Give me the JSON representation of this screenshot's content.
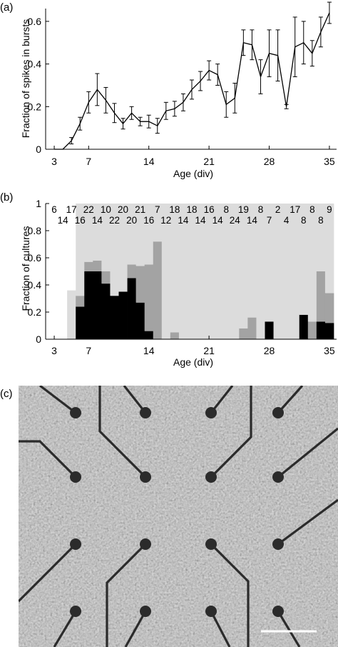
{
  "panels": {
    "a": "(a)",
    "b": "(b)",
    "c": "(c)"
  },
  "chart_data": [
    {
      "id": "a",
      "type": "line",
      "xlabel": "Age (div)",
      "ylabel": "Fraction of spikes in bursts",
      "xlim": [
        2,
        36
      ],
      "ylim": [
        0,
        0.66
      ],
      "xticks": [
        3,
        7,
        14,
        21,
        28,
        35
      ],
      "yticks": [
        0,
        0.2,
        0.4,
        0.6
      ],
      "ytick_labels": [
        "0",
        "0.2",
        "0.4",
        "0.6"
      ],
      "series": [
        {
          "x": [
            3,
            4,
            5,
            6,
            7,
            8,
            9,
            10,
            11,
            12,
            13,
            14,
            15,
            16,
            17,
            18,
            19,
            20,
            21,
            22,
            23,
            24,
            25,
            26,
            27,
            28,
            29,
            30,
            31,
            32,
            33,
            34,
            35
          ],
          "y": [
            0,
            0,
            0.04,
            0.12,
            0.22,
            0.28,
            0.23,
            0.17,
            0.12,
            0.17,
            0.13,
            0.13,
            0.11,
            0.18,
            0.19,
            0.22,
            0.28,
            0.32,
            0.37,
            0.35,
            0.21,
            0.24,
            0.5,
            0.49,
            0.34,
            0.45,
            0.44,
            0.2,
            0.48,
            0.5,
            0.45,
            0.55,
            0.64
          ],
          "err": [
            0,
            0,
            0.015,
            0.03,
            0.05,
            0.075,
            0.06,
            0.045,
            0.025,
            0.03,
            0.02,
            0.03,
            0.035,
            0.04,
            0.035,
            0.04,
            0.045,
            0.045,
            0.045,
            0.05,
            0.06,
            0.07,
            0.06,
            0.07,
            0.08,
            0.11,
            0.12,
            0.01,
            0.14,
            0.1,
            0.06,
            0.07,
            0.05
          ]
        }
      ]
    },
    {
      "id": "b",
      "type": "bar",
      "stacked": true,
      "xlabel": "Age (div)",
      "ylabel": "Fraction of cultures",
      "xlim": [
        2,
        36
      ],
      "ylim": [
        0,
        1
      ],
      "xticks": [
        3,
        7,
        14,
        21,
        28,
        35
      ],
      "yticks": [
        0,
        0.2,
        0.4,
        0.6,
        0.8,
        1
      ],
      "ytick_labels": [
        "0",
        "0.2",
        "0.4",
        "0.6",
        "0.8",
        "1"
      ],
      "colors": {
        "light": "#dcdcdc",
        "mid": "#a3a3a3",
        "dark": "#000000"
      },
      "x": [
        3,
        4,
        5,
        6,
        7,
        8,
        9,
        10,
        11,
        12,
        13,
        14,
        15,
        16,
        17,
        18,
        19,
        20,
        21,
        22,
        23,
        24,
        25,
        26,
        27,
        28,
        29,
        30,
        31,
        32,
        33,
        34,
        35
      ],
      "series": [
        {
          "color": "dark",
          "values": [
            0,
            0,
            0,
            0.24,
            0.5,
            0.5,
            0.41,
            0.32,
            0.35,
            0.45,
            0.27,
            0.06,
            0,
            0,
            0,
            0,
            0,
            0,
            0,
            0,
            0,
            0,
            0,
            0,
            0,
            0.13,
            0,
            0,
            0,
            0.18,
            0,
            0.13,
            0.12
          ]
        },
        {
          "color": "mid",
          "values": [
            0,
            0,
            0,
            0.08,
            0.07,
            0.08,
            0.09,
            0,
            0,
            0.1,
            0.27,
            0.49,
            0.72,
            0,
            0.05,
            0,
            0,
            0,
            0,
            0,
            0,
            0,
            0.08,
            0.16,
            0,
            0,
            0,
            0,
            0,
            0,
            0.13,
            0.37,
            0.22
          ]
        },
        {
          "color": "light",
          "values": [
            0,
            0,
            0.36,
            0.68,
            0.43,
            0.42,
            0.5,
            0.68,
            0.65,
            0.45,
            0.46,
            0.45,
            0.28,
            1,
            0.95,
            1,
            1,
            1,
            1,
            1,
            1,
            1,
            0.92,
            0.84,
            1,
            0.87,
            1,
            1,
            1,
            0.82,
            0.87,
            0.5,
            0.66
          ]
        }
      ],
      "count_labels_top": [
        {
          "text": "6",
          "x": 3
        },
        {
          "text": "17",
          "x": 5
        },
        {
          "text": "22",
          "x": 7
        },
        {
          "text": "10",
          "x": 9
        },
        {
          "text": "20",
          "x": 11
        },
        {
          "text": "21",
          "x": 13
        },
        {
          "text": "7",
          "x": 15
        },
        {
          "text": "18",
          "x": 17
        },
        {
          "text": "18",
          "x": 19
        },
        {
          "text": "16",
          "x": 21
        },
        {
          "text": "8",
          "x": 23
        },
        {
          "text": "19",
          "x": 25
        },
        {
          "text": "8",
          "x": 27
        },
        {
          "text": "2",
          "x": 29
        },
        {
          "text": "17",
          "x": 31
        },
        {
          "text": "8",
          "x": 33
        },
        {
          "text": "9",
          "x": 35
        }
      ],
      "count_labels_bottom": [
        {
          "text": "14",
          "x": 4
        },
        {
          "text": "16",
          "x": 6
        },
        {
          "text": "14",
          "x": 8
        },
        {
          "text": "22",
          "x": 10
        },
        {
          "text": "20",
          "x": 12
        },
        {
          "text": "16",
          "x": 14
        },
        {
          "text": "12",
          "x": 16
        },
        {
          "text": "14",
          "x": 18
        },
        {
          "text": "14",
          "x": 20
        },
        {
          "text": "14",
          "x": 22
        },
        {
          "text": "24",
          "x": 24
        },
        {
          "text": "14",
          "x": 26
        },
        {
          "text": "7",
          "x": 28
        },
        {
          "text": "4",
          "x": 30
        },
        {
          "text": "8",
          "x": 32
        },
        {
          "text": "8",
          "x": 34
        }
      ]
    }
  ],
  "micrograph": {
    "colors": {
      "background": "#aaaaaa",
      "trace": "#2b2b2b",
      "scale_bar": "#ffffff"
    },
    "electrode_grid": {
      "rows": 4,
      "cols": 4
    }
  }
}
